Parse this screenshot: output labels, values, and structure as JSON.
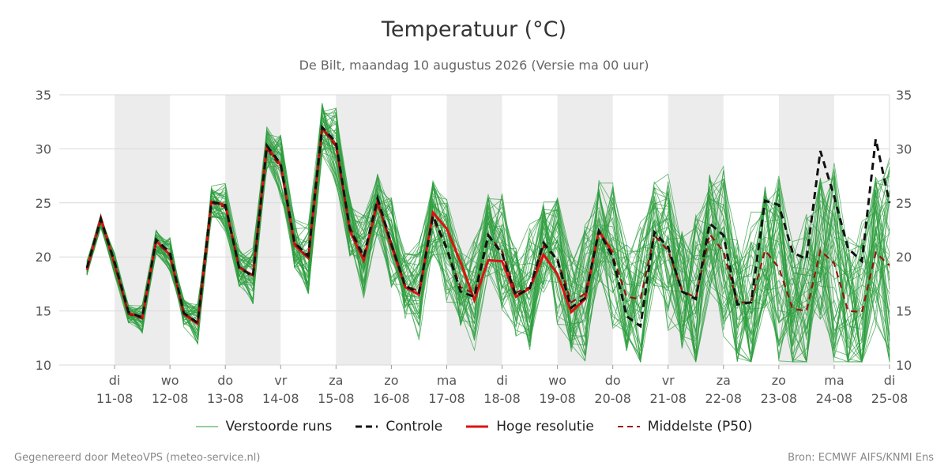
{
  "chart_data": {
    "type": "line",
    "title": "Temperatuur (°C)",
    "subtitle": "De Bilt, maandag 10 augustus 2026 (Versie ma 00 uur)",
    "ylim": [
      10,
      35
    ],
    "yticks": [
      10,
      15,
      20,
      25,
      30,
      35
    ],
    "grid": true,
    "legend_position": "bottom",
    "x_range_days": [
      10.0,
      25.0
    ],
    "x_ticks": [
      {
        "day": 11,
        "weekday": "di",
        "date": "11-08"
      },
      {
        "day": 12,
        "weekday": "wo",
        "date": "12-08"
      },
      {
        "day": 13,
        "weekday": "do",
        "date": "13-08"
      },
      {
        "day": 14,
        "weekday": "vr",
        "date": "14-08"
      },
      {
        "day": 15,
        "weekday": "za",
        "date": "15-08"
      },
      {
        "day": 16,
        "weekday": "zo",
        "date": "16-08"
      },
      {
        "day": 17,
        "weekday": "ma",
        "date": "17-08"
      },
      {
        "day": 18,
        "weekday": "di",
        "date": "18-08"
      },
      {
        "day": 19,
        "weekday": "wo",
        "date": "19-08"
      },
      {
        "day": 20,
        "weekday": "do",
        "date": "20-08"
      },
      {
        "day": 21,
        "weekday": "vr",
        "date": "21-08"
      },
      {
        "day": 22,
        "weekday": "za",
        "date": "22-08"
      },
      {
        "day": 23,
        "weekday": "zo",
        "date": "23-08"
      },
      {
        "day": 24,
        "weekday": "ma",
        "date": "24-08"
      },
      {
        "day": 25,
        "weekday": "di",
        "date": "25-08"
      }
    ],
    "shaded_bands": [
      [
        11,
        12
      ],
      [
        13,
        14
      ],
      [
        15,
        16
      ],
      [
        17,
        18
      ],
      [
        19,
        20
      ],
      [
        21,
        22
      ],
      [
        23,
        24
      ]
    ],
    "colors": {
      "ensemble": "#2e9e3e",
      "control": "#111111",
      "high_res": "#dd1111",
      "median": "#991111",
      "band": "#ececec",
      "grid": "#d9d9d9"
    },
    "times": [
      10.5,
      10.75,
      11.0,
      11.25,
      11.5,
      11.75,
      12.0,
      12.25,
      12.5,
      12.75,
      13.0,
      13.25,
      13.5,
      13.75,
      14.0,
      14.25,
      14.5,
      14.75,
      15.0,
      15.25,
      15.5,
      15.75,
      16.0,
      16.25,
      16.5,
      16.75,
      17.0,
      17.25,
      17.5,
      17.75,
      18.0,
      18.25,
      18.5,
      18.75,
      19.0,
      19.25,
      19.5,
      19.75,
      20.0,
      20.25,
      20.5,
      20.75,
      21.0,
      21.25,
      21.5,
      21.75,
      22.0,
      22.25,
      22.5,
      22.75,
      23.0,
      23.25,
      23.5,
      23.75,
      24.0,
      24.25,
      24.5,
      24.75,
      25.0
    ],
    "series": [
      {
        "name": "Controle",
        "style": "dashed",
        "values": [
          19.0,
          23.5,
          19.5,
          14.9,
          14.4,
          21.6,
          20.4,
          14.8,
          13.9,
          25.1,
          24.8,
          19.0,
          18.2,
          30.3,
          28.6,
          21.3,
          20.1,
          32.0,
          30.6,
          22.6,
          20.0,
          25.4,
          21.2,
          17.3,
          16.7,
          23.8,
          20.8,
          16.8,
          16.3,
          22.0,
          20.3,
          16.4,
          17.1,
          21.3,
          19.7,
          15.3,
          16.2,
          22.4,
          20.0,
          14.5,
          13.6,
          22.3,
          20.9,
          16.8,
          16.1,
          23.1,
          22.0,
          15.6,
          15.8,
          25.2,
          24.8,
          20.4,
          19.8,
          29.8,
          25.6,
          20.8,
          19.6,
          30.9,
          25.0
        ]
      },
      {
        "name": "Hoge resolutie",
        "style": "solid",
        "values": [
          18.8,
          23.6,
          19.3,
          14.8,
          14.4,
          21.5,
          20.2,
          14.7,
          13.8,
          25.1,
          24.8,
          19.0,
          18.3,
          30.2,
          28.5,
          21.1,
          19.9,
          31.9,
          30.4,
          22.4,
          19.7,
          25.1,
          21.0,
          17.2,
          16.5,
          24.1,
          22.6,
          19.5,
          16.0,
          19.7,
          19.6,
          16.3,
          17.1,
          20.2,
          18.4,
          14.9,
          16.1,
          22.4,
          20.4
        ]
      },
      {
        "name": "Middelste (P50)",
        "style": "dashed",
        "values": [
          19.0,
          23.3,
          19.3,
          14.7,
          14.3,
          21.4,
          20.1,
          14.8,
          13.9,
          25.0,
          24.6,
          19.1,
          18.3,
          30.0,
          28.3,
          21.3,
          19.9,
          31.9,
          30.2,
          22.8,
          20.1,
          24.9,
          21.3,
          17.4,
          16.8,
          23.6,
          20.7,
          17.2,
          16.6,
          22.0,
          20.5,
          16.7,
          17.2,
          21.0,
          19.8,
          15.8,
          16.6,
          22.3,
          20.1,
          16.3,
          16.1,
          22.0,
          20.6,
          16.9,
          16.2,
          22.1,
          20.5,
          15.8,
          15.8,
          20.6,
          19.0,
          15.2,
          15.0,
          20.6,
          19.4,
          15.0,
          14.9,
          20.4,
          19.2
        ]
      },
      {
        "name": "Verstoorde runs",
        "style": "thin",
        "count": 50,
        "note": "ensemble members spread around the median"
      }
    ],
    "legend": [
      {
        "label": "Verstoorde runs",
        "style": "thin",
        "color": "#2e9e3e"
      },
      {
        "label": "Controle",
        "style": "dashed",
        "color": "#111111"
      },
      {
        "label": "Hoge resolutie",
        "style": "solid",
        "color": "#dd1111"
      },
      {
        "label": "Middelste (P50)",
        "style": "dashed",
        "color": "#991111"
      }
    ]
  },
  "footer": {
    "left": "Gegenereerd door MeteoVPS (meteo-service.nl)",
    "right": "Bron: ECMWF AIFS/KNMI Ens"
  }
}
